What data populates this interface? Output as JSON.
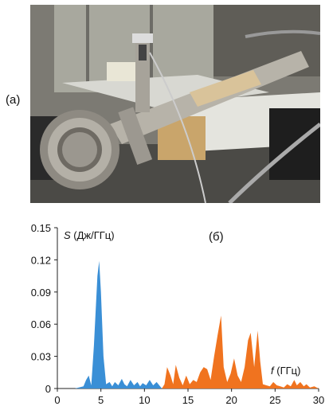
{
  "figure": {
    "panel_a_label": "(а)",
    "panel_b_label": "(б)"
  },
  "photo": {
    "description_icon": "experimental-setup-photo"
  },
  "chart_data": {
    "type": "area",
    "ylabel_var": "S",
    "ylabel_unit": " (Дж/ГГц)",
    "xlabel_var": "f",
    "xlabel_unit": " (ГГц)",
    "xlim": [
      0,
      30
    ],
    "ylim": [
      0,
      0.15
    ],
    "x_ticks": [
      "0",
      "5",
      "10",
      "15",
      "20",
      "25",
      "30"
    ],
    "y_ticks": [
      "0",
      "0.03",
      "0.06",
      "0.09",
      "0.12",
      "0.15"
    ],
    "series": [
      {
        "color": "#3a8fd6",
        "x": [
          2.0,
          3.0,
          3.3,
          3.6,
          3.9,
          4.2,
          4.6,
          4.8,
          5.0,
          5.3,
          5.6,
          6.0,
          6.3,
          6.6,
          7.0,
          7.4,
          7.7,
          8.0,
          8.4,
          8.8,
          9.2,
          9.5,
          9.8,
          10.2,
          10.6,
          11.0,
          11.4,
          11.8,
          12.0
        ],
        "values": [
          0.0,
          0.002,
          0.008,
          0.012,
          0.003,
          0.04,
          0.105,
          0.119,
          0.09,
          0.03,
          0.004,
          0.006,
          0.002,
          0.006,
          0.003,
          0.009,
          0.004,
          0.002,
          0.008,
          0.003,
          0.006,
          0.002,
          0.005,
          0.003,
          0.008,
          0.003,
          0.006,
          0.002,
          0.0
        ]
      },
      {
        "color": "#f0731f",
        "x": [
          12.0,
          12.3,
          12.6,
          13.0,
          13.3,
          13.6,
          14.0,
          14.4,
          14.8,
          15.2,
          15.6,
          16.0,
          16.4,
          16.8,
          17.2,
          17.6,
          18.0,
          18.4,
          18.8,
          19.1,
          19.5,
          19.9,
          20.3,
          20.7,
          21.1,
          21.5,
          21.9,
          22.2,
          22.6,
          23.0,
          23.3,
          23.6,
          24.0,
          24.4,
          24.8,
          25.2,
          25.6,
          26.0,
          26.4,
          26.8,
          27.2,
          27.5,
          27.9,
          28.3,
          28.6,
          29.0,
          29.5,
          30.0
        ],
        "values": [
          0.0,
          0.004,
          0.02,
          0.012,
          0.004,
          0.022,
          0.01,
          0.003,
          0.012,
          0.004,
          0.008,
          0.006,
          0.015,
          0.02,
          0.018,
          0.008,
          0.03,
          0.05,
          0.068,
          0.02,
          0.006,
          0.014,
          0.028,
          0.012,
          0.006,
          0.02,
          0.045,
          0.052,
          0.02,
          0.054,
          0.025,
          0.004,
          0.003,
          0.002,
          0.006,
          0.003,
          0.002,
          0.001,
          0.004,
          0.002,
          0.008,
          0.003,
          0.006,
          0.002,
          0.004,
          0.001,
          0.002,
          0.0
        ]
      }
    ]
  }
}
